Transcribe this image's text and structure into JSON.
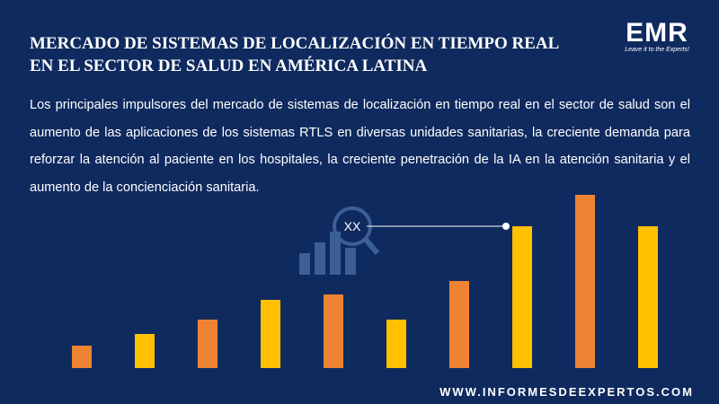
{
  "header": {
    "title_lines": [
      "MERCADO DE SISTEMAS DE LOCALIZACIÓN EN TIEMPO REAL",
      "EN EL SECTOR DE SALUD EN AMÉRICA LATINA"
    ]
  },
  "logo": {
    "text": "EMR",
    "tagline": "Leave it to the Experts!"
  },
  "paragraph": "Los principales impulsores del mercado de sistemas de localización en tiempo real en el sector de salud son el aumento de las aplicaciones de los sistemas RTLS en diversas unidades sanitarias, la creciente demanda para reforzar la atención al paciente en los hospitales, la creciente penetración de la IA en la atención sanitaria y el aumento de la concienciación sanitaria.",
  "chart_data": {
    "type": "bar",
    "categories": [
      null,
      null,
      null,
      null,
      null,
      null,
      null,
      null,
      null,
      null
    ],
    "values": [
      25,
      38,
      54,
      76,
      82,
      54,
      97,
      158,
      193,
      158
    ],
    "colors": [
      "#ee8433",
      "#ffc000",
      "#ee8433",
      "#ffc000",
      "#ee8433",
      "#ffc000",
      "#ee8433",
      "#ffc000",
      "#ee8433",
      "#ffc000"
    ],
    "annotation": {
      "text": "XX",
      "index": 7
    }
  },
  "footer": {
    "url": "WWW.INFORMESDEEXPERTOS.COM"
  }
}
